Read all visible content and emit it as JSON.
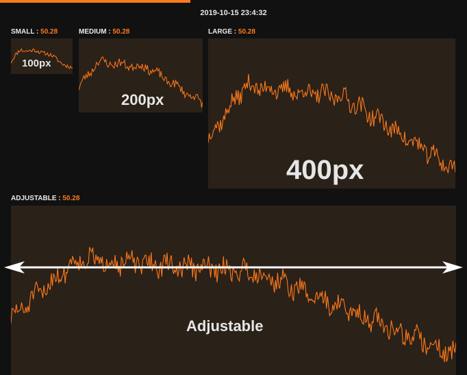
{
  "timestamp": "2019-10-15 23:4:32",
  "accent_color": "#ff7a1a",
  "panel_color": "#2a2119",
  "widgets": [
    {
      "name": "SMALL",
      "value": "50.28",
      "size_text": "100px"
    },
    {
      "name": "MEDIUM",
      "value": "50.28",
      "size_text": "200px"
    },
    {
      "name": "LARGE",
      "value": "50.28",
      "size_text": "400px"
    },
    {
      "name": "ADJUSTABLE",
      "value": "50.28",
      "size_text": "Adjustable"
    }
  ],
  "arrow": {
    "type": "double-headed-horizontal",
    "color": "#ffffff"
  }
}
